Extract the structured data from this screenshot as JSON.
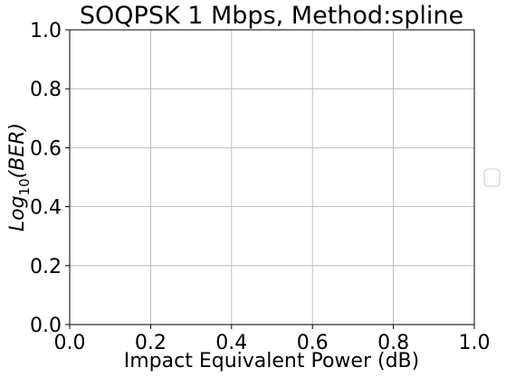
{
  "chart_data": {
    "type": "line",
    "title": "SOQPSK 1 Mbps, Method:spline",
    "xlabel": "Impact Equivalent Power (dB)",
    "ylabel": {
      "base": "Log",
      "subscript": "10",
      "argument": "(BER)"
    },
    "xlim": [
      0.0,
      1.0
    ],
    "ylim": [
      0.0,
      1.0
    ],
    "x_ticks": [
      "0.0",
      "0.2",
      "0.4",
      "0.6",
      "0.8",
      "1.0"
    ],
    "y_ticks": [
      "0.0",
      "0.2",
      "0.4",
      "0.6",
      "0.8",
      "1.0"
    ],
    "grid": true,
    "legend": {
      "placement": "right-outside",
      "entries": []
    },
    "series": []
  }
}
